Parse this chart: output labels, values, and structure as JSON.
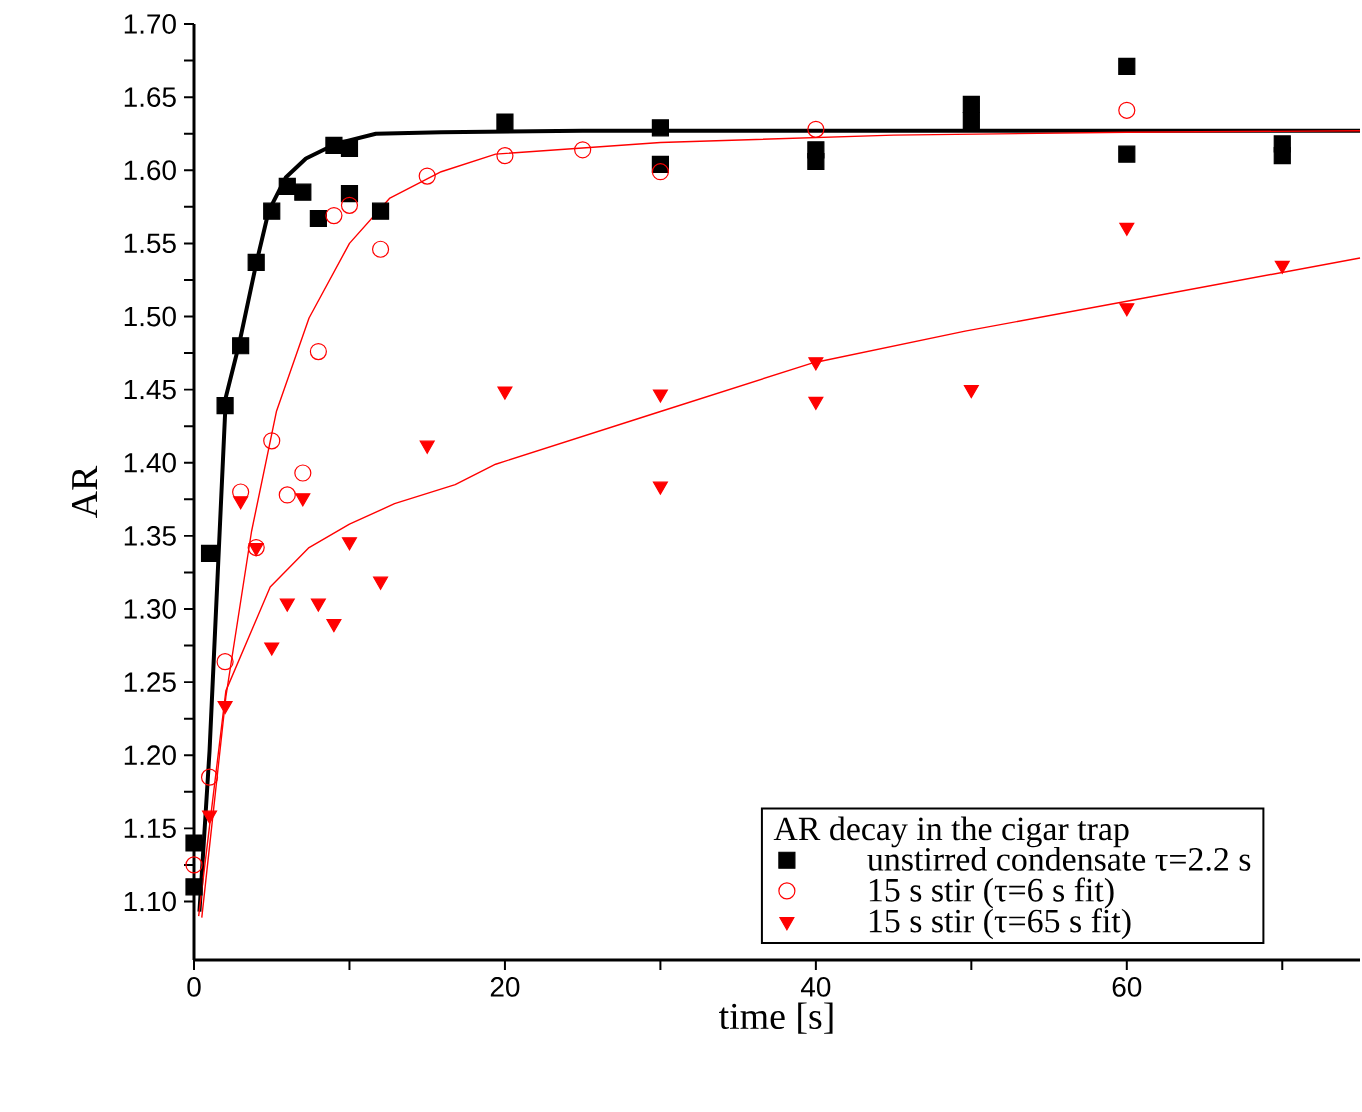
{
  "chart_data": {
    "type": "scatter",
    "xlabel": "time [s]",
    "ylabel": "AR",
    "legend_title": "AR decay in the cigar trap",
    "legend": "bottom right",
    "grid": false,
    "xlim": [
      0,
      75
    ],
    "ylim": [
      1.06,
      1.7
    ],
    "xticks": [
      0,
      {
        "value": 10,
        "label": null
      },
      20,
      {
        "value": 30,
        "label": null
      },
      40,
      {
        "value": 50,
        "label": null
      },
      60,
      {
        "value": 70,
        "label": null
      }
    ],
    "yticks": [
      {
        "value": 1.1,
        "label": "1.10"
      },
      {
        "value": 1.125,
        "label": null
      },
      {
        "value": 1.15,
        "label": "1.15"
      },
      {
        "value": 1.175,
        "label": null
      },
      {
        "value": 1.2,
        "label": "1.20"
      },
      {
        "value": 1.225,
        "label": null
      },
      {
        "value": 1.25,
        "label": "1.25"
      },
      {
        "value": 1.275,
        "label": null
      },
      {
        "value": 1.3,
        "label": "1.30"
      },
      {
        "value": 1.325,
        "label": null
      },
      {
        "value": 1.35,
        "label": "1.35"
      },
      {
        "value": 1.375,
        "label": null
      },
      {
        "value": 1.4,
        "label": "1.40"
      },
      {
        "value": 1.425,
        "label": null
      },
      {
        "value": 1.45,
        "label": "1.45"
      },
      {
        "value": 1.475,
        "label": null
      },
      {
        "value": 1.5,
        "label": "1.50"
      },
      {
        "value": 1.525,
        "label": null
      },
      {
        "value": 1.55,
        "label": "1.55"
      },
      {
        "value": 1.575,
        "label": null
      },
      {
        "value": 1.6,
        "label": "1.60"
      },
      {
        "value": 1.625,
        "label": null
      },
      {
        "value": 1.65,
        "label": "1.65"
      },
      {
        "value": 1.675,
        "label": null
      },
      {
        "value": 1.7,
        "label": "1.70"
      }
    ],
    "series": [
      {
        "type": "line",
        "color": "#000000",
        "marker": "none",
        "line_style": "solid",
        "x": [
          0.35,
          1.0,
          2.05,
          2.9,
          4.0,
          4.8,
          5.9,
          7.2,
          9.1,
          11.7,
          15.9,
          25,
          40,
          60,
          75
        ],
        "values": [
          1.093,
          1.203,
          1.445,
          1.481,
          1.536,
          1.572,
          1.595,
          1.608,
          1.618,
          1.625,
          1.626,
          1.627,
          1.627,
          1.627,
          1.627
        ]
      },
      {
        "type": "line",
        "color": "#ff0000",
        "marker": "none",
        "line_style": "solid",
        "x": [
          0.5,
          2.05,
          3.7,
          5.3,
          7.4,
          10,
          12.6,
          15.9,
          19.4,
          30,
          45,
          60,
          75
        ],
        "values": [
          1.089,
          1.24,
          1.353,
          1.435,
          1.499,
          1.55,
          1.581,
          1.599,
          1.611,
          1.619,
          1.624,
          1.626,
          1.627
        ]
      },
      {
        "type": "line",
        "color": "#ff0000",
        "marker": "none",
        "line_style": "solid",
        "x": [
          0.3,
          2.05,
          4.9,
          7.4,
          10,
          12.9,
          16.8,
          19.4,
          29.7,
          39.7,
          49.6,
          61.3,
          75
        ],
        "values": [
          1.09,
          1.244,
          1.315,
          1.342,
          1.358,
          1.372,
          1.385,
          1.399,
          1.434,
          1.468,
          1.49,
          1.513,
          1.54
        ]
      },
      {
        "name": "unstirred condensate τ=2.2 s",
        "color": "#000000",
        "marker": "square",
        "x": [
          0,
          0,
          1,
          2,
          3,
          4,
          5,
          6,
          7,
          8,
          9,
          10,
          10,
          12,
          20,
          30,
          30,
          40,
          40,
          50,
          50,
          60,
          60,
          70,
          70
        ],
        "values": [
          1.11,
          1.14,
          1.338,
          1.439,
          1.48,
          1.537,
          1.572,
          1.589,
          1.585,
          1.567,
          1.617,
          1.615,
          1.584,
          1.572,
          1.633,
          1.629,
          1.604,
          1.614,
          1.606,
          1.645,
          1.634,
          1.671,
          1.611,
          1.618,
          1.61
        ]
      },
      {
        "name": "15 s stir (τ=6 s fit)",
        "color": "#ff0000",
        "marker": "circle",
        "x": [
          0,
          1,
          2,
          3,
          4,
          5,
          6,
          7,
          8,
          9,
          10,
          12,
          15,
          20,
          25,
          30,
          40,
          60
        ],
        "values": [
          1.125,
          1.185,
          1.264,
          1.38,
          1.342,
          1.415,
          1.378,
          1.393,
          1.476,
          1.569,
          1.576,
          1.546,
          1.596,
          1.61,
          1.614,
          1.599,
          1.628,
          1.641
        ]
      },
      {
        "name": "15 s stir (τ=65 s fit)",
        "color": "#ff0000",
        "marker": "triangle",
        "x": [
          1,
          2,
          3,
          4,
          5,
          6,
          7,
          8,
          9,
          10,
          12,
          15,
          20,
          30,
          30,
          40,
          40,
          50,
          60,
          60,
          70
        ],
        "values": [
          1.159,
          1.234,
          1.374,
          1.342,
          1.274,
          1.304,
          1.376,
          1.304,
          1.29,
          1.346,
          1.319,
          1.412,
          1.449,
          1.447,
          1.384,
          1.469,
          1.442,
          1.45,
          1.506,
          1.561,
          1.535
        ]
      }
    ]
  }
}
